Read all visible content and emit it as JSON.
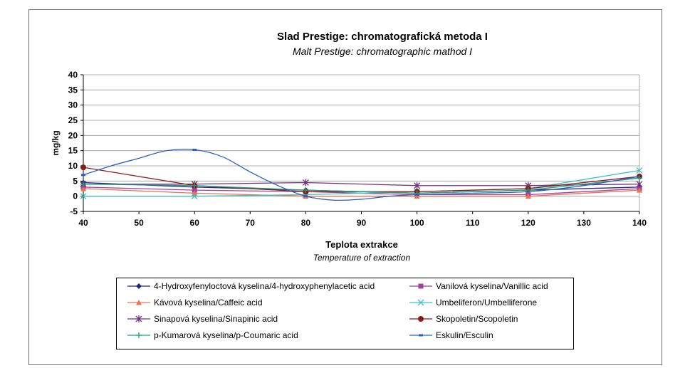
{
  "chart_data": {
    "type": "line",
    "title": "Slad Prestige: chromatografická metoda I",
    "subtitle": "Malt Prestige: chromatographic mathod I",
    "xlabel": "Teplota extrakce",
    "xlabel_sub": "Temperature of extraction",
    "ylabel": "mg/kg",
    "xlim": [
      40,
      140
    ],
    "ylim": [
      -5,
      40
    ],
    "xticks": [
      40,
      50,
      60,
      70,
      80,
      90,
      100,
      110,
      120,
      130,
      140
    ],
    "yticks": [
      -5,
      0,
      5,
      10,
      15,
      20,
      25,
      30,
      35,
      40
    ],
    "grid": "horizontal",
    "legend_position": "bottom",
    "series": [
      {
        "name": "4-Hydroxyfenyloctová kyselina/4-hydroxyphenylacetic acid",
        "color": "#1f2a80",
        "marker": "diamond",
        "x": [
          40,
          60,
          80,
          100,
          120,
          140
        ],
        "y": [
          4.5,
          3.0,
          2.0,
          1.0,
          2.0,
          3.0
        ]
      },
      {
        "name": "Vanilová kyselina/Vanillic acid",
        "color": "#a040a0",
        "marker": "square",
        "x": [
          40,
          60,
          80,
          100,
          120,
          140
        ],
        "y": [
          3.0,
          2.0,
          1.5,
          0.5,
          0.5,
          2.5
        ]
      },
      {
        "name": "Kávová kyselina/Caffeic acid",
        "color": "#f07050",
        "marker": "triangle",
        "x": [
          40,
          60,
          80,
          100,
          120,
          140
        ],
        "y": [
          2.5,
          1.0,
          0.0,
          0.0,
          0.0,
          2.0
        ]
      },
      {
        "name": "Umbeliferon/Umbelliferone",
        "color": "#40c0c0",
        "marker": "x",
        "x": [
          40,
          60,
          80,
          100,
          120,
          140
        ],
        "y": [
          0.0,
          0.0,
          0.5,
          1.5,
          2.5,
          8.5
        ]
      },
      {
        "name": "Sinapová kyselina/Sinapinic acid",
        "color": "#703080",
        "marker": "star",
        "x": [
          40,
          60,
          80,
          100,
          120,
          140
        ],
        "y": [
          4.0,
          4.0,
          4.5,
          3.5,
          3.5,
          4.0
        ]
      },
      {
        "name": "Skopoletin/Scopoletin",
        "color": "#8b1a1a",
        "marker": "circle",
        "x": [
          40,
          60,
          80,
          100,
          120,
          140
        ],
        "y": [
          9.5,
          3.5,
          1.5,
          1.5,
          2.5,
          6.5
        ]
      },
      {
        "name": "p-Kumarová kyselina/p-Coumaric acid",
        "color": "#20a070",
        "marker": "plus",
        "x": [
          40,
          60,
          80,
          100,
          120,
          140
        ],
        "y": [
          4.0,
          3.5,
          2.0,
          1.0,
          2.0,
          6.0
        ]
      },
      {
        "name": "Eskulin/Esculin",
        "color": "#2a60c0",
        "marker": "dash",
        "x": [
          40,
          45,
          50,
          55,
          60,
          65,
          70,
          75,
          80,
          85,
          90,
          95,
          100,
          110,
          120,
          130,
          140
        ],
        "y": [
          7.0,
          10.0,
          12.5,
          15.0,
          15.3,
          13.0,
          8.0,
          3.5,
          0.0,
          -1.3,
          -1.0,
          0.0,
          0.5,
          1.0,
          1.5,
          3.5,
          6.5
        ]
      }
    ]
  }
}
